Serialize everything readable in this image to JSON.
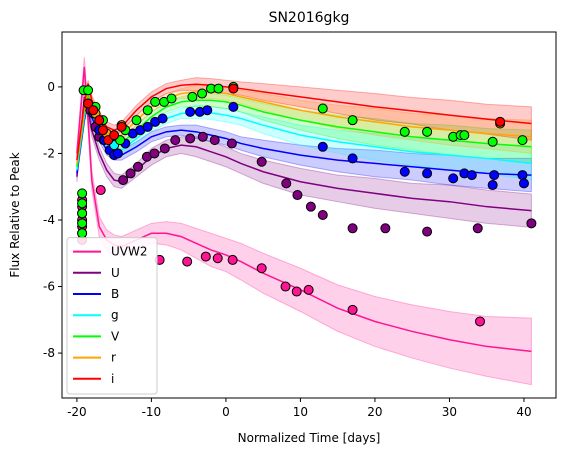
{
  "chart_data": {
    "type": "line",
    "title": "SN2016gkg",
    "x_label": "Normalized Time [days]",
    "y_label": "Flux Relative to Peak",
    "xlim": [
      -22,
      44.3
    ],
    "ylim": [
      -9.35,
      1.65
    ],
    "xticks": [
      -20,
      -10,
      0,
      10,
      20,
      30,
      40
    ],
    "yticks": [
      0,
      -2,
      -4,
      -6,
      -8
    ],
    "legend": "lower left",
    "x": [
      -20,
      -19,
      -18.5,
      -18,
      -17,
      -16,
      -15,
      -14,
      -12,
      -10,
      -8,
      -6,
      -4,
      -2,
      0,
      2,
      5,
      10,
      15,
      20,
      25,
      30,
      35,
      41
    ],
    "series": [
      {
        "name": "UVW2",
        "color": "#ff1493",
        "values": [
          -2.0,
          0.6,
          -1.0,
          -2.8,
          -4.2,
          -4.6,
          -4.75,
          -4.8,
          -4.6,
          -4.4,
          -4.4,
          -4.5,
          -4.7,
          -4.9,
          -5.05,
          -5.25,
          -5.6,
          -6.1,
          -6.65,
          -7.05,
          -7.35,
          -7.6,
          -7.8,
          -7.95
        ],
        "errors": [
          0.2,
          0.3,
          0.3,
          0.3,
          0.3,
          0.3,
          0.3,
          0.3,
          0.3,
          0.3,
          0.35,
          0.4,
          0.45,
          0.5,
          0.5,
          0.55,
          0.6,
          0.65,
          0.7,
          0.75,
          0.8,
          0.85,
          0.9,
          1.0
        ],
        "obs_x": [
          -19.3,
          -19.3,
          -19.3,
          -19.3,
          -19.3,
          -19.3,
          -19.3,
          -16.8,
          -8.9,
          -5.2,
          -2.7,
          -1.1,
          0.9,
          4.8,
          8.0,
          9.5,
          11.1,
          17.0,
          34.1
        ],
        "obs_y": [
          -3.4,
          -3.6,
          -3.8,
          -4.0,
          -4.2,
          -4.4,
          -4.6,
          -3.1,
          -5.2,
          -5.25,
          -5.1,
          -5.15,
          -5.2,
          -5.45,
          -6.0,
          -6.15,
          -6.1,
          -6.7,
          -7.05
        ]
      },
      {
        "name": "U",
        "color": "#800080",
        "values": [
          -2.7,
          -0.3,
          -0.7,
          -1.3,
          -2.0,
          -2.5,
          -2.8,
          -2.85,
          -2.5,
          -2.1,
          -1.85,
          -1.75,
          -1.8,
          -1.95,
          -2.1,
          -2.3,
          -2.55,
          -2.85,
          -3.05,
          -3.2,
          -3.35,
          -3.45,
          -3.6,
          -3.72
        ],
        "errors": [
          0.15,
          0.2,
          0.2,
          0.2,
          0.2,
          0.2,
          0.2,
          0.2,
          0.2,
          0.25,
          0.25,
          0.25,
          0.3,
          0.3,
          0.3,
          0.3,
          0.35,
          0.4,
          0.4,
          0.45,
          0.45,
          0.5,
          0.5,
          0.5
        ],
        "obs_x": [
          -18.2,
          -17.5,
          -17.0,
          -16.4,
          -13.8,
          -12.8,
          -11.8,
          -10.6,
          -9.6,
          -8.2,
          -6.8,
          -4.8,
          -3.1,
          -1.5,
          0.8,
          4.8,
          8.1,
          9.6,
          11.4,
          13.0,
          17.0,
          21.4,
          27.0,
          33.8,
          41.0
        ],
        "obs_y": [
          -0.7,
          -1.2,
          -1.5,
          -1.6,
          -2.8,
          -2.6,
          -2.4,
          -2.1,
          -2.0,
          -1.85,
          -1.6,
          -1.55,
          -1.5,
          -1.6,
          -1.7,
          -2.25,
          -2.9,
          -3.25,
          -3.6,
          -3.85,
          -4.25,
          -4.25,
          -4.35,
          -4.25,
          -4.1
        ]
      },
      {
        "name": "B",
        "color": "#0000ff",
        "values": [
          -2.6,
          -1.0,
          -0.4,
          -0.9,
          -1.5,
          -1.9,
          -2.05,
          -2.05,
          -1.8,
          -1.5,
          -1.35,
          -1.3,
          -1.35,
          -1.45,
          -1.55,
          -1.7,
          -1.85,
          -2.05,
          -2.2,
          -2.3,
          -2.4,
          -2.5,
          -2.6,
          -2.65
        ],
        "errors": [
          0.1,
          0.1,
          0.1,
          0.15,
          0.15,
          0.15,
          0.15,
          0.15,
          0.15,
          0.15,
          0.15,
          0.15,
          0.2,
          0.2,
          0.2,
          0.2,
          0.25,
          0.3,
          0.35,
          0.4,
          0.4,
          0.45,
          0.45,
          0.5
        ],
        "obs_x": [
          -18.5,
          -17.8,
          -17.0,
          -16.3,
          -15.6,
          -15.0,
          -14.5,
          -13.5,
          -12.5,
          -11.5,
          -10.5,
          -9.5,
          -8.5,
          -4.8,
          -3.5,
          -2.5,
          1.0,
          13.0,
          17.0,
          24.0,
          27.0,
          30.5,
          32.0,
          33.0,
          35.8,
          36.0,
          39.8,
          40.0
        ],
        "obs_y": [
          -0.5,
          -0.8,
          -1.3,
          -1.6,
          -1.9,
          -2.05,
          -2.0,
          -1.7,
          -1.4,
          -1.3,
          -1.2,
          -1.05,
          -0.95,
          -0.75,
          -0.75,
          -0.7,
          -0.6,
          -1.8,
          -2.15,
          -2.55,
          -2.6,
          -2.75,
          -2.6,
          -2.65,
          -2.95,
          -2.65,
          -2.65,
          -2.9
        ]
      },
      {
        "name": "g",
        "color": "#00ffff",
        "values": [
          -2.5,
          -0.9,
          -0.3,
          -0.7,
          -1.3,
          -1.65,
          -1.85,
          -1.9,
          -1.55,
          -1.2,
          -0.95,
          -0.8,
          -0.75,
          -0.78,
          -0.85,
          -0.95,
          -1.15,
          -1.45,
          -1.65,
          -1.8,
          -1.95,
          -2.05,
          -2.15,
          -2.3
        ],
        "errors": [
          0.1,
          0.1,
          0.1,
          0.15,
          0.15,
          0.15,
          0.15,
          0.15,
          0.15,
          0.15,
          0.15,
          0.15,
          0.2,
          0.2,
          0.2,
          0.2,
          0.25,
          0.3,
          0.35,
          0.4,
          0.4,
          0.45,
          0.45,
          0.5
        ],
        "obs_x": [
          -17.0,
          -15.0
        ],
        "obs_y": [
          -1.0,
          -1.75
        ]
      },
      {
        "name": "V",
        "color": "#00ff00",
        "values": [
          -2.4,
          -0.8,
          -0.2,
          -0.6,
          -1.15,
          -1.5,
          -1.7,
          -1.7,
          -1.3,
          -0.9,
          -0.6,
          -0.45,
          -0.4,
          -0.4,
          -0.45,
          -0.55,
          -0.75,
          -1.0,
          -1.2,
          -1.35,
          -1.5,
          -1.6,
          -1.7,
          -1.8
        ],
        "errors": [
          0.1,
          0.1,
          0.1,
          0.15,
          0.15,
          0.15,
          0.15,
          0.15,
          0.15,
          0.15,
          0.15,
          0.15,
          0.2,
          0.2,
          0.2,
          0.2,
          0.25,
          0.3,
          0.35,
          0.4,
          0.4,
          0.45,
          0.45,
          0.5
        ],
        "obs_x": [
          -19.3,
          -19.3,
          -19.3,
          -19.3,
          -19.3,
          -19.1,
          -18.5,
          -17.5,
          -16.5,
          -15.5,
          -14.2,
          -13.5,
          -12.0,
          -10.5,
          -9.5,
          -8.3,
          -7.3,
          -4.5,
          -3.2,
          -2.0,
          -1.0,
          1.0,
          13.0,
          17.0,
          24.0,
          27.0,
          30.5,
          31.5,
          32.0,
          35.8,
          39.8
        ],
        "obs_y": [
          -3.2,
          -3.5,
          -3.8,
          -4.1,
          -4.4,
          -0.1,
          -0.1,
          -0.6,
          -1.0,
          -1.5,
          -1.6,
          -1.3,
          -1.0,
          -0.7,
          -0.45,
          -0.45,
          -0.35,
          -0.3,
          -0.2,
          -0.05,
          -0.05,
          0.0,
          -0.65,
          -1.0,
          -1.35,
          -1.35,
          -1.5,
          -1.45,
          -1.45,
          -1.65,
          -1.6
        ]
      },
      {
        "name": "r",
        "color": "#ffa500",
        "values": [
          -2.3,
          -0.7,
          -0.1,
          -0.5,
          -1.0,
          -1.35,
          -1.5,
          -1.45,
          -1.0,
          -0.6,
          -0.35,
          -0.2,
          -0.15,
          -0.15,
          -0.2,
          -0.3,
          -0.45,
          -0.7,
          -0.9,
          -1.05,
          -1.2,
          -1.3,
          -1.4,
          -1.5
        ],
        "errors": [
          0.1,
          0.1,
          0.1,
          0.15,
          0.15,
          0.15,
          0.15,
          0.15,
          0.15,
          0.15,
          0.15,
          0.15,
          0.2,
          0.2,
          0.2,
          0.2,
          0.25,
          0.3,
          0.35,
          0.4,
          0.4,
          0.45,
          0.45,
          0.5
        ],
        "obs_x": [
          -17.5,
          -16.0,
          -14.0,
          36.8
        ],
        "obs_y": [
          -0.8,
          -1.4,
          -1.15,
          -1.1
        ]
      },
      {
        "name": "i",
        "color": "#ff0000",
        "values": [
          -2.2,
          -0.5,
          0.1,
          -0.4,
          -0.9,
          -1.2,
          -1.3,
          -1.2,
          -0.7,
          -0.3,
          -0.05,
          0.05,
          0.08,
          0.05,
          0.0,
          -0.05,
          -0.15,
          -0.3,
          -0.45,
          -0.6,
          -0.72,
          -0.85,
          -0.97,
          -1.1
        ],
        "errors": [
          0.1,
          0.1,
          0.1,
          0.15,
          0.15,
          0.15,
          0.15,
          0.15,
          0.15,
          0.15,
          0.15,
          0.15,
          0.2,
          0.2,
          0.2,
          0.2,
          0.25,
          0.3,
          0.35,
          0.4,
          0.4,
          0.45,
          0.45,
          0.5
        ],
        "obs_x": [
          -18.5,
          -17.8,
          -17.0,
          -16.5,
          -15.8,
          -15.0,
          -14.0,
          1.0,
          36.8
        ],
        "obs_y": [
          -0.5,
          -0.7,
          -1.0,
          -1.3,
          -1.6,
          -1.45,
          -1.2,
          -0.05,
          -1.05
        ]
      }
    ]
  }
}
